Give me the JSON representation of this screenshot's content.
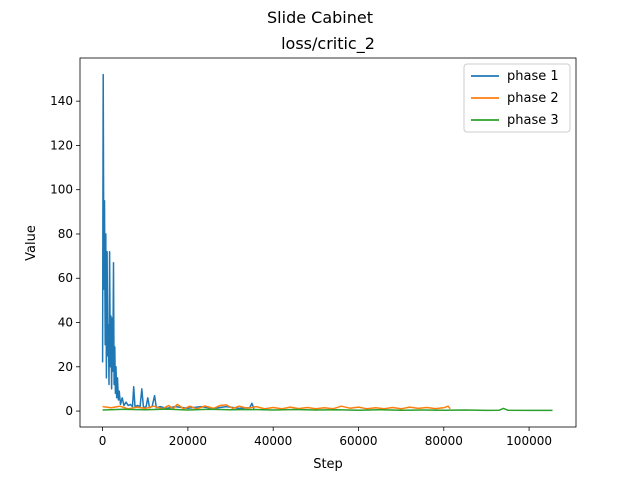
{
  "figure": {
    "suptitle": "Slide Cabinet"
  },
  "chart_data": {
    "type": "line",
    "title": "loss/critic_2",
    "xlabel": "Step",
    "ylabel": "Value",
    "xlim": [
      -5300,
      111000
    ],
    "ylim": [
      -7.2,
      159.5
    ],
    "xticks": [
      0,
      20000,
      40000,
      60000,
      80000,
      100000
    ],
    "yticks": [
      0,
      20,
      40,
      60,
      80,
      100,
      120,
      140
    ],
    "legend_position": "top-right",
    "series": [
      {
        "name": "phase 1",
        "color": "#1f77b4",
        "points": [
          [
            0,
            22
          ],
          [
            150,
            152
          ],
          [
            300,
            55
          ],
          [
            450,
            95
          ],
          [
            600,
            30
          ],
          [
            750,
            80
          ],
          [
            900,
            15
          ],
          [
            1050,
            72
          ],
          [
            1200,
            25
          ],
          [
            1350,
            39
          ],
          [
            1500,
            12
          ],
          [
            1650,
            72
          ],
          [
            1800,
            20
          ],
          [
            1950,
            43
          ],
          [
            2100,
            10
          ],
          [
            2250,
            42
          ],
          [
            2400,
            18
          ],
          [
            2550,
            67
          ],
          [
            2700,
            12
          ],
          [
            2850,
            29
          ],
          [
            3000,
            8
          ],
          [
            3150,
            20
          ],
          [
            3300,
            6
          ],
          [
            3500,
            15
          ],
          [
            3700,
            5
          ],
          [
            3900,
            9
          ],
          [
            4200,
            3
          ],
          [
            4600,
            6
          ],
          [
            5000,
            2.5
          ],
          [
            5500,
            4
          ],
          [
            6000,
            2.5
          ],
          [
            6500,
            3
          ],
          [
            7000,
            2
          ],
          [
            7300,
            11
          ],
          [
            7600,
            2
          ],
          [
            8200,
            2.5
          ],
          [
            8800,
            2
          ],
          [
            9200,
            10
          ],
          [
            9600,
            1.5
          ],
          [
            10200,
            2
          ],
          [
            10600,
            6
          ],
          [
            11000,
            1.5
          ],
          [
            11600,
            2
          ],
          [
            12200,
            7
          ],
          [
            12600,
            1.5
          ],
          [
            13500,
            2
          ],
          [
            15000,
            1.2
          ],
          [
            17000,
            2
          ],
          [
            20000,
            1.3
          ],
          [
            23000,
            2
          ],
          [
            26000,
            1.2
          ],
          [
            29000,
            2
          ],
          [
            32000,
            1.2
          ],
          [
            34500,
            1.5
          ],
          [
            35000,
            3.5
          ],
          [
            35500,
            1
          ]
        ]
      },
      {
        "name": "phase 2",
        "color": "#ff7f0e",
        "points": [
          [
            0,
            2
          ],
          [
            2000,
            1.5
          ],
          [
            4000,
            2.2
          ],
          [
            6000,
            1
          ],
          [
            8000,
            1.8
          ],
          [
            10000,
            1.2
          ],
          [
            12000,
            2.2
          ],
          [
            14000,
            1
          ],
          [
            15500,
            2.5
          ],
          [
            16500,
            1
          ],
          [
            17500,
            3
          ],
          [
            19000,
            1
          ],
          [
            20500,
            2.2
          ],
          [
            22000,
            1
          ],
          [
            24000,
            2.3
          ],
          [
            26000,
            1.2
          ],
          [
            27500,
            2.5
          ],
          [
            29000,
            2.8
          ],
          [
            30500,
            1.2
          ],
          [
            32000,
            2.2
          ],
          [
            34000,
            1.3
          ],
          [
            36000,
            2
          ],
          [
            38000,
            1
          ],
          [
            40000,
            1.6
          ],
          [
            42000,
            1
          ],
          [
            44000,
            1.8
          ],
          [
            46000,
            1.1
          ],
          [
            48000,
            1.6
          ],
          [
            50000,
            1
          ],
          [
            52000,
            1.5
          ],
          [
            54000,
            1
          ],
          [
            56000,
            2.2
          ],
          [
            58000,
            1.3
          ],
          [
            60000,
            1.8
          ],
          [
            62000,
            1
          ],
          [
            64000,
            1.5
          ],
          [
            66000,
            1
          ],
          [
            68000,
            1.6
          ],
          [
            70000,
            1
          ],
          [
            72000,
            1.8
          ],
          [
            74000,
            1.2
          ],
          [
            76000,
            1.6
          ],
          [
            78000,
            1.1
          ],
          [
            80000,
            1.5
          ],
          [
            81000,
            2.2
          ],
          [
            81500,
            1
          ]
        ]
      },
      {
        "name": "phase 3",
        "color": "#2ca02c",
        "points": [
          [
            0,
            0.5
          ],
          [
            5000,
            0.8
          ],
          [
            10000,
            0.6
          ],
          [
            15000,
            0.9
          ],
          [
            20000,
            0.5
          ],
          [
            25000,
            0.8
          ],
          [
            30000,
            0.6
          ],
          [
            35000,
            0.7
          ],
          [
            40000,
            0.5
          ],
          [
            45000,
            0.7
          ],
          [
            50000,
            0.5
          ],
          [
            55000,
            0.6
          ],
          [
            60000,
            0.4
          ],
          [
            65000,
            0.6
          ],
          [
            70000,
            0.4
          ],
          [
            75000,
            0.5
          ],
          [
            80000,
            0.4
          ],
          [
            85000,
            0.5
          ],
          [
            90000,
            0.3
          ],
          [
            93000,
            0.4
          ],
          [
            94000,
            1.2
          ],
          [
            95000,
            0.4
          ],
          [
            100000,
            0.3
          ],
          [
            105500,
            0.3
          ]
        ]
      }
    ]
  }
}
